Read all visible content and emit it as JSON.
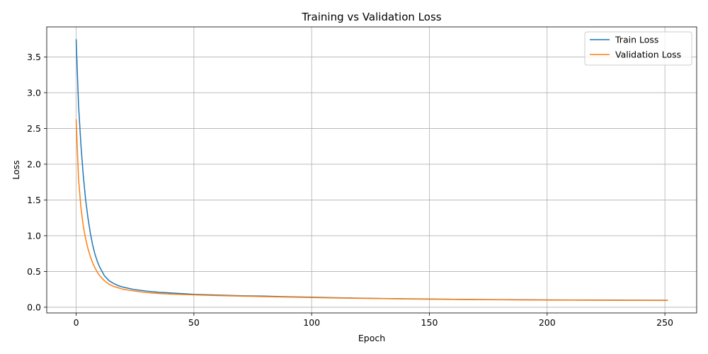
{
  "chart_data": {
    "type": "line",
    "title": "Training vs Validation Loss",
    "xlabel": "Epoch",
    "ylabel": "Loss",
    "xlim": [
      -12.5,
      263.5
    ],
    "ylim": [
      -0.08,
      3.92
    ],
    "xticks": [
      0,
      50,
      100,
      150,
      200,
      250
    ],
    "xtick_labels": [
      "0",
      "50",
      "100",
      "150",
      "200",
      "250"
    ],
    "yticks": [
      0.0,
      0.5,
      1.0,
      1.5,
      2.0,
      2.5,
      3.0,
      3.5
    ],
    "ytick_labels": [
      "0.0",
      "0.5",
      "1.0",
      "1.5",
      "2.0",
      "2.5",
      "3.0",
      "3.5"
    ],
    "grid": true,
    "legend_position": "top-right",
    "x": [
      0,
      1,
      2,
      3,
      4,
      5,
      6,
      7,
      8,
      9,
      10,
      12,
      14,
      16,
      18,
      20,
      25,
      30,
      35,
      40,
      50,
      60,
      70,
      80,
      90,
      100,
      110,
      120,
      130,
      140,
      150,
      160,
      170,
      180,
      190,
      200,
      210,
      220,
      230,
      240,
      251
    ],
    "series": [
      {
        "name": "Train Loss",
        "color": "#1f77b4",
        "values": [
          3.74,
          2.83,
          2.28,
          1.85,
          1.51,
          1.25,
          1.04,
          0.87,
          0.74,
          0.64,
          0.56,
          0.44,
          0.37,
          0.33,
          0.3,
          0.28,
          0.245,
          0.225,
          0.21,
          0.2,
          0.18,
          0.17,
          0.16,
          0.155,
          0.147,
          0.14,
          0.133,
          0.127,
          0.122,
          0.118,
          0.114,
          0.111,
          0.108,
          0.106,
          0.104,
          0.102,
          0.101,
          0.1,
          0.099,
          0.098,
          0.097
        ]
      },
      {
        "name": "Validation Loss",
        "color": "#ff7f0e",
        "values": [
          2.62,
          1.8,
          1.4,
          1.14,
          0.96,
          0.82,
          0.71,
          0.62,
          0.55,
          0.49,
          0.44,
          0.37,
          0.32,
          0.29,
          0.27,
          0.25,
          0.225,
          0.205,
          0.192,
          0.184,
          0.172,
          0.163,
          0.155,
          0.148,
          0.141,
          0.135,
          0.129,
          0.124,
          0.12,
          0.116,
          0.112,
          0.109,
          0.106,
          0.104,
          0.102,
          0.1,
          0.099,
          0.098,
          0.097,
          0.096,
          0.095
        ]
      }
    ]
  },
  "style": {
    "grid_color": "#b0b0b0",
    "axes_color": "#000000",
    "background": "#ffffff"
  }
}
